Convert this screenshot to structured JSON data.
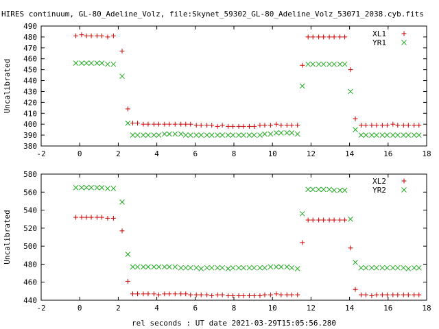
{
  "figure_title": "HIRES continuum, GL-80_Adeline_Volz, file:Skynet_59302_GL-80_Adeline_Volz_53071_2038.cyb.fits",
  "colors": {
    "xl": "#cc0000",
    "yr": "#22aa22",
    "axes": "#000000"
  },
  "chart_data": [
    {
      "type": "scatter",
      "ylabel": "Uncalibrated",
      "xlabel": "",
      "xlim": [
        -2,
        18
      ],
      "ylim": [
        380,
        490
      ],
      "xticks": [
        -2,
        0,
        2,
        4,
        6,
        8,
        10,
        12,
        14,
        16,
        18
      ],
      "yticks": [
        380,
        390,
        400,
        410,
        420,
        430,
        440,
        450,
        460,
        470,
        480,
        490
      ],
      "grid": false,
      "legend": "top-right",
      "series": [
        {
          "name": "XL1",
          "marker": "plus",
          "x": [
            -0.2,
            0.1,
            0.35,
            0.6,
            0.9,
            1.15,
            1.45,
            1.75,
            2.2,
            2.5,
            2.75,
            3.0,
            3.3,
            3.55,
            3.85,
            4.1,
            4.4,
            4.65,
            4.95,
            5.25,
            5.5,
            5.75,
            6.05,
            6.3,
            6.6,
            6.85,
            7.15,
            7.4,
            7.7,
            7.95,
            8.25,
            8.5,
            8.8,
            9.05,
            9.35,
            9.6,
            9.9,
            10.2,
            10.45,
            10.75,
            11.0,
            11.3,
            11.55,
            11.85,
            12.1,
            12.4,
            12.65,
            12.95,
            13.2,
            13.5,
            13.75,
            14.05,
            14.3,
            14.6,
            14.85,
            15.15,
            15.4,
            15.7,
            15.95,
            16.25,
            16.5,
            16.8,
            17.05,
            17.35,
            17.6
          ],
          "y": [
            481,
            482,
            481,
            481,
            481,
            481,
            480,
            481,
            467,
            414,
            401,
            401,
            400,
            400,
            400,
            400,
            400,
            400,
            400,
            400,
            400,
            400,
            399,
            399,
            399,
            399,
            398,
            399,
            398,
            398,
            398,
            398,
            398,
            398,
            399,
            399,
            399,
            400,
            399,
            399,
            399,
            399,
            454,
            480,
            480,
            480,
            480,
            480,
            480,
            480,
            480,
            450,
            405,
            399,
            399,
            399,
            399,
            399,
            399,
            400,
            399,
            399,
            399,
            399,
            399
          ]
        },
        {
          "name": "YR1",
          "marker": "cross",
          "x": [
            -0.2,
            0.1,
            0.35,
            0.6,
            0.9,
            1.15,
            1.45,
            1.75,
            2.2,
            2.5,
            2.75,
            3.0,
            3.3,
            3.55,
            3.85,
            4.1,
            4.4,
            4.65,
            4.95,
            5.25,
            5.5,
            5.75,
            6.05,
            6.3,
            6.6,
            6.85,
            7.15,
            7.4,
            7.7,
            7.95,
            8.25,
            8.5,
            8.8,
            9.05,
            9.35,
            9.6,
            9.9,
            10.2,
            10.45,
            10.75,
            11.0,
            11.3,
            11.55,
            11.85,
            12.1,
            12.4,
            12.65,
            12.95,
            13.2,
            13.5,
            13.75,
            14.05,
            14.3,
            14.6,
            14.85,
            15.15,
            15.4,
            15.7,
            15.95,
            16.25,
            16.5,
            16.8,
            17.05,
            17.35,
            17.6
          ],
          "y": [
            456,
            456,
            456,
            456,
            456,
            456,
            455,
            455,
            444,
            401,
            390,
            390,
            390,
            390,
            390,
            390,
            391,
            391,
            391,
            391,
            390,
            390,
            390,
            390,
            390,
            390,
            390,
            390,
            390,
            390,
            390,
            390,
            390,
            390,
            390,
            391,
            391,
            392,
            392,
            392,
            392,
            391,
            435,
            455,
            455,
            455,
            455,
            455,
            455,
            455,
            455,
            430,
            395,
            390,
            390,
            390,
            390,
            390,
            390,
            390,
            390,
            390,
            390,
            390,
            390
          ]
        }
      ]
    },
    {
      "type": "scatter",
      "ylabel": "Uncalibrated",
      "xlabel": "rel seconds : UT date 2021-03-29T15:05:56.280",
      "xlim": [
        -2,
        18
      ],
      "ylim": [
        440,
        580
      ],
      "xticks": [
        -2,
        0,
        2,
        4,
        6,
        8,
        10,
        12,
        14,
        16,
        18
      ],
      "yticks": [
        440,
        460,
        480,
        500,
        520,
        540,
        560,
        580
      ],
      "grid": false,
      "legend": "top-right",
      "series": [
        {
          "name": "XL2",
          "marker": "plus",
          "x": [
            -0.2,
            0.1,
            0.35,
            0.6,
            0.9,
            1.15,
            1.45,
            1.75,
            2.2,
            2.5,
            2.75,
            3.0,
            3.3,
            3.55,
            3.85,
            4.1,
            4.4,
            4.65,
            4.95,
            5.25,
            5.5,
            5.75,
            6.05,
            6.3,
            6.6,
            6.85,
            7.15,
            7.4,
            7.7,
            7.95,
            8.25,
            8.5,
            8.8,
            9.05,
            9.35,
            9.6,
            9.9,
            10.2,
            10.45,
            10.75,
            11.0,
            11.3,
            11.55,
            11.85,
            12.1,
            12.4,
            12.65,
            12.95,
            13.2,
            13.5,
            13.75,
            14.05,
            14.3,
            14.6,
            14.85,
            15.15,
            15.4,
            15.7,
            15.95,
            16.25,
            16.5,
            16.8,
            17.05,
            17.35,
            17.6
          ],
          "y": [
            532,
            532,
            532,
            532,
            532,
            532,
            531,
            531,
            517,
            461,
            447,
            447,
            447,
            447,
            447,
            446,
            447,
            447,
            447,
            447,
            447,
            446,
            446,
            446,
            446,
            445,
            446,
            446,
            445,
            445,
            445,
            445,
            445,
            445,
            445,
            446,
            446,
            447,
            446,
            446,
            446,
            446,
            504,
            529,
            529,
            529,
            529,
            529,
            529,
            529,
            529,
            498,
            452,
            446,
            446,
            445,
            446,
            446,
            446,
            446,
            446,
            446,
            446,
            446,
            446
          ]
        },
        {
          "name": "YR2",
          "marker": "cross",
          "x": [
            -0.2,
            0.1,
            0.35,
            0.6,
            0.9,
            1.15,
            1.45,
            1.75,
            2.2,
            2.5,
            2.75,
            3.0,
            3.3,
            3.55,
            3.85,
            4.1,
            4.4,
            4.65,
            4.95,
            5.25,
            5.5,
            5.75,
            6.05,
            6.3,
            6.6,
            6.85,
            7.15,
            7.4,
            7.7,
            7.95,
            8.25,
            8.5,
            8.8,
            9.05,
            9.35,
            9.6,
            9.9,
            10.2,
            10.45,
            10.75,
            11.0,
            11.3,
            11.55,
            11.85,
            12.1,
            12.4,
            12.65,
            12.95,
            13.2,
            13.5,
            13.75,
            14.05,
            14.3,
            14.6,
            14.85,
            15.15,
            15.4,
            15.7,
            15.95,
            16.25,
            16.5,
            16.8,
            17.05,
            17.35,
            17.6
          ],
          "y": [
            565,
            565,
            565,
            565,
            565,
            565,
            564,
            564,
            549,
            491,
            477,
            477,
            477,
            477,
            477,
            477,
            477,
            477,
            477,
            476,
            476,
            476,
            476,
            475,
            476,
            476,
            476,
            476,
            475,
            476,
            476,
            476,
            476,
            476,
            476,
            476,
            477,
            477,
            477,
            477,
            476,
            475,
            536,
            563,
            563,
            563,
            563,
            563,
            562,
            562,
            562,
            530,
            482,
            476,
            476,
            476,
            476,
            476,
            476,
            476,
            476,
            476,
            475,
            476,
            476
          ]
        }
      ]
    }
  ]
}
